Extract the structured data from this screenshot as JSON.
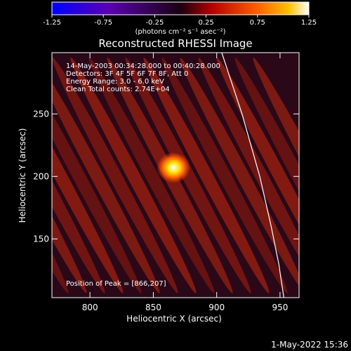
{
  "chart_data": {
    "type": "heatmap",
    "title": "Reconstructed RHESSI Image",
    "xlabel": "Heliocentric X (arcsec)",
    "ylabel": "Heliocentric Y (arcsec)",
    "xlim": [
      770,
      965
    ],
    "ylim": [
      103,
      299
    ],
    "xticks": [
      800,
      850,
      900,
      950
    ],
    "yticks": [
      150,
      200,
      250
    ],
    "colorbar": {
      "ticks": [
        "-1.25",
        "-0.75",
        "-0.25",
        "0.25",
        "0.75",
        "1.25"
      ],
      "range": [
        -1.25,
        1.25
      ],
      "units_label": "(photons cm⁻² s⁻¹ asec⁻²)"
    },
    "annotations": [
      "14-May-2003 00:34:28.000 to 00:40:28.000",
      "Detectors: 3F 4F 5F 6F 7F 8F, Att 0",
      "Energy Range: 3.0 - 6.0 keV",
      "Clean     Total counts: 2.74E+04"
    ],
    "peak": {
      "label": "Position of Peak = [866,207]",
      "x": 866,
      "y": 207,
      "value": 1.25
    },
    "limb": [
      [
        904,
        299
      ],
      [
        920,
        250
      ],
      [
        934,
        200
      ],
      [
        943,
        160
      ],
      [
        949,
        130
      ],
      [
        953,
        103
      ]
    ],
    "timestamp": "1-May-2022 15:36"
  }
}
